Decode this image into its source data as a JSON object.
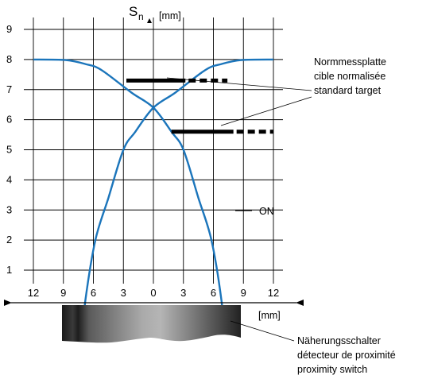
{
  "y_axis": {
    "symbol": "S",
    "subscript": "n",
    "unit": "[mm]",
    "ticks": [
      "1",
      "2",
      "3",
      "4",
      "5",
      "6",
      "7",
      "8",
      "9"
    ]
  },
  "x_axis": {
    "unit": "[mm]",
    "ticks": [
      "12",
      "9",
      "6",
      "3",
      "0",
      "3",
      "6",
      "9",
      "12"
    ]
  },
  "target_label": {
    "line1": "Normmessplatte",
    "line2": "cible normalisée",
    "line3": "standard target"
  },
  "switch_label": {
    "line1": "Näherungsschalter",
    "line2": "détecteur de proximité",
    "line3": "proximity  switch"
  },
  "legend": {
    "on_label": "ON"
  },
  "colors": {
    "curve": "#1b75bb",
    "grid": "#000000"
  },
  "curves": {
    "left_curve": [
      [
        -12,
        8
      ],
      [
        -8.8,
        7.98
      ],
      [
        -6.8,
        7.85
      ],
      [
        -5.2,
        7.65
      ],
      [
        -2.2,
        6.9
      ],
      [
        0,
        6.4
      ],
      [
        1.8,
        5.6
      ],
      [
        3,
        5
      ],
      [
        4.5,
        3.4
      ],
      [
        5.8,
        2.0
      ],
      [
        6.8,
        0
      ],
      [
        7.0,
        -1
      ]
    ],
    "right_curve": [
      [
        12,
        8
      ],
      [
        8.8,
        7.98
      ],
      [
        6.8,
        7.85
      ],
      [
        5.2,
        7.65
      ],
      [
        2.2,
        6.9
      ],
      [
        0,
        6.4
      ],
      [
        -1.8,
        5.6
      ],
      [
        -3,
        5
      ],
      [
        -4.5,
        3.4
      ],
      [
        -5.8,
        2.0
      ],
      [
        -6.8,
        0
      ],
      [
        -7.0,
        -1
      ]
    ]
  },
  "targets": [
    {
      "x_start": -2.7,
      "x_solid_end": 3.2,
      "x_dash_end": 7.4,
      "y": 7.3
    },
    {
      "x_start": 1.8,
      "x_solid_end": 8.0,
      "x_dash_end": 12,
      "y": 5.6
    }
  ]
}
